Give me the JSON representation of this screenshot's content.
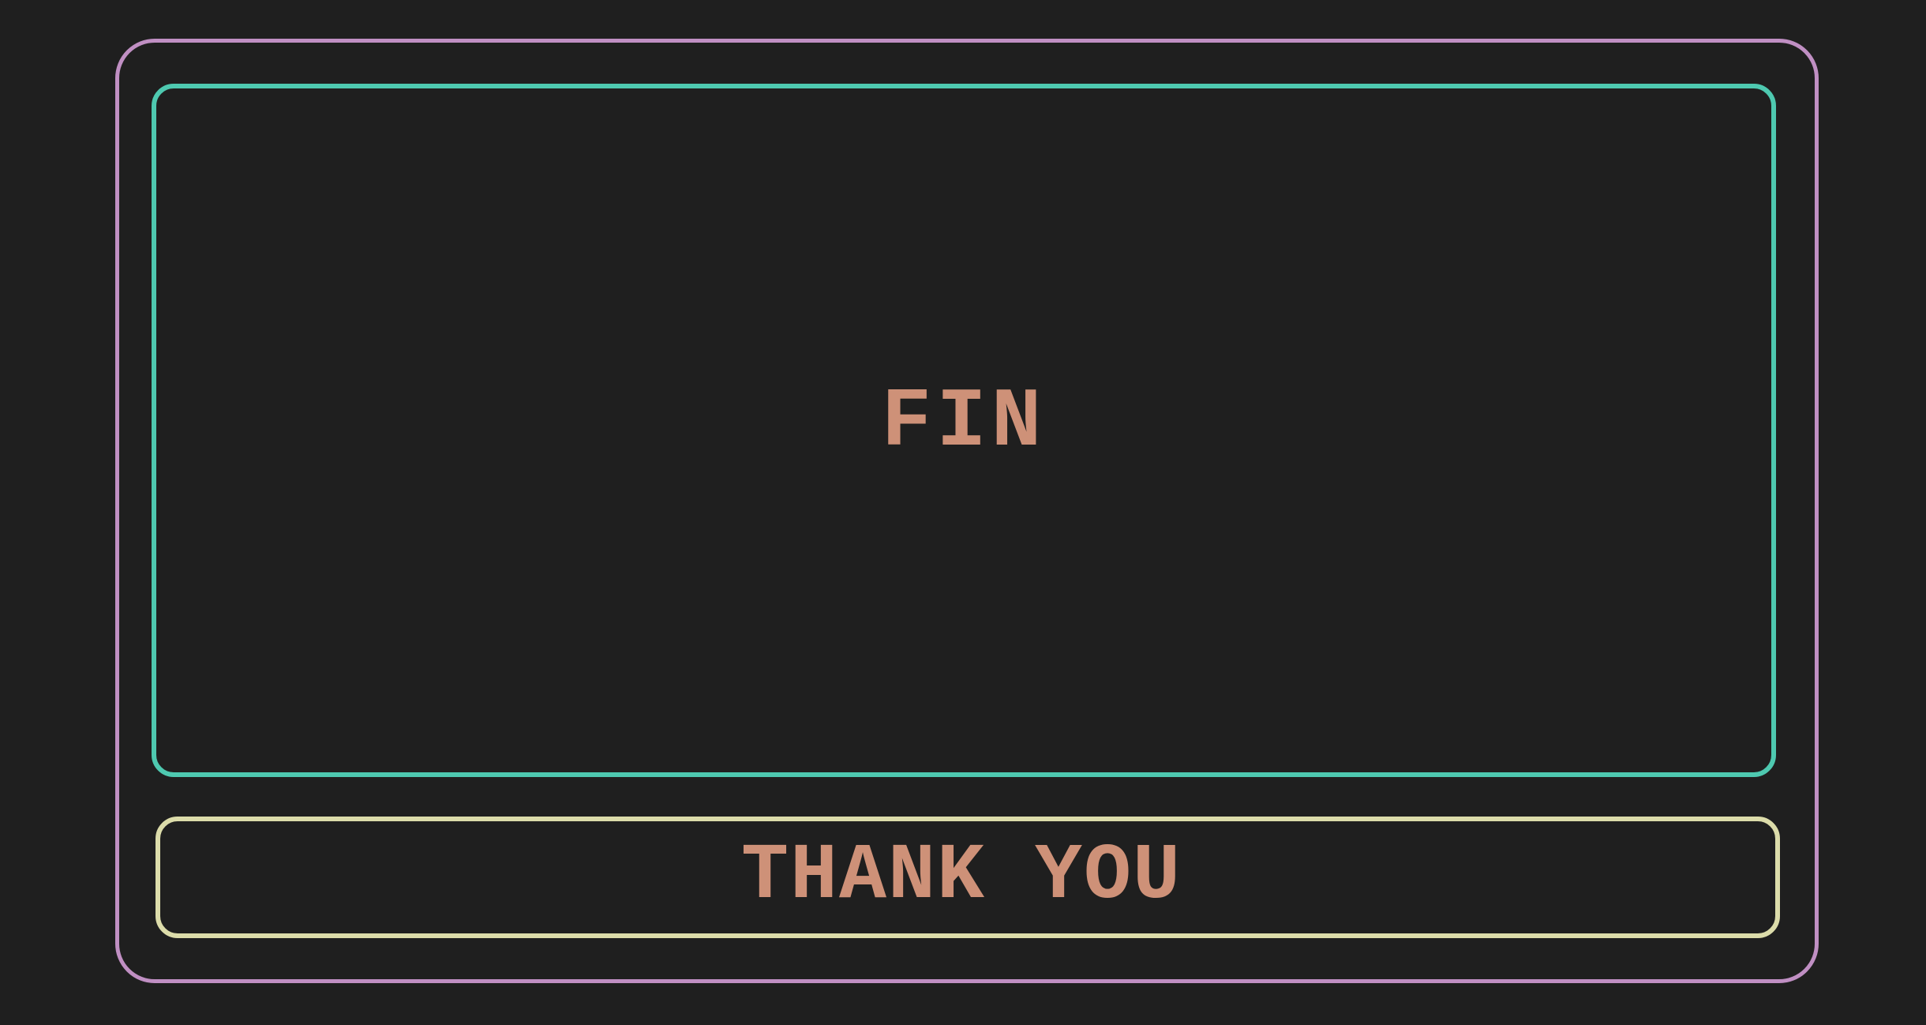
{
  "slide": {
    "title": "FIN",
    "footer": "THANK YOU"
  },
  "colors": {
    "background": "#1f1f1f",
    "outer_border": "#c08fc3",
    "main_border": "#4ec9b0",
    "footer_border": "#dcdcaa",
    "text": "#ce9178"
  }
}
